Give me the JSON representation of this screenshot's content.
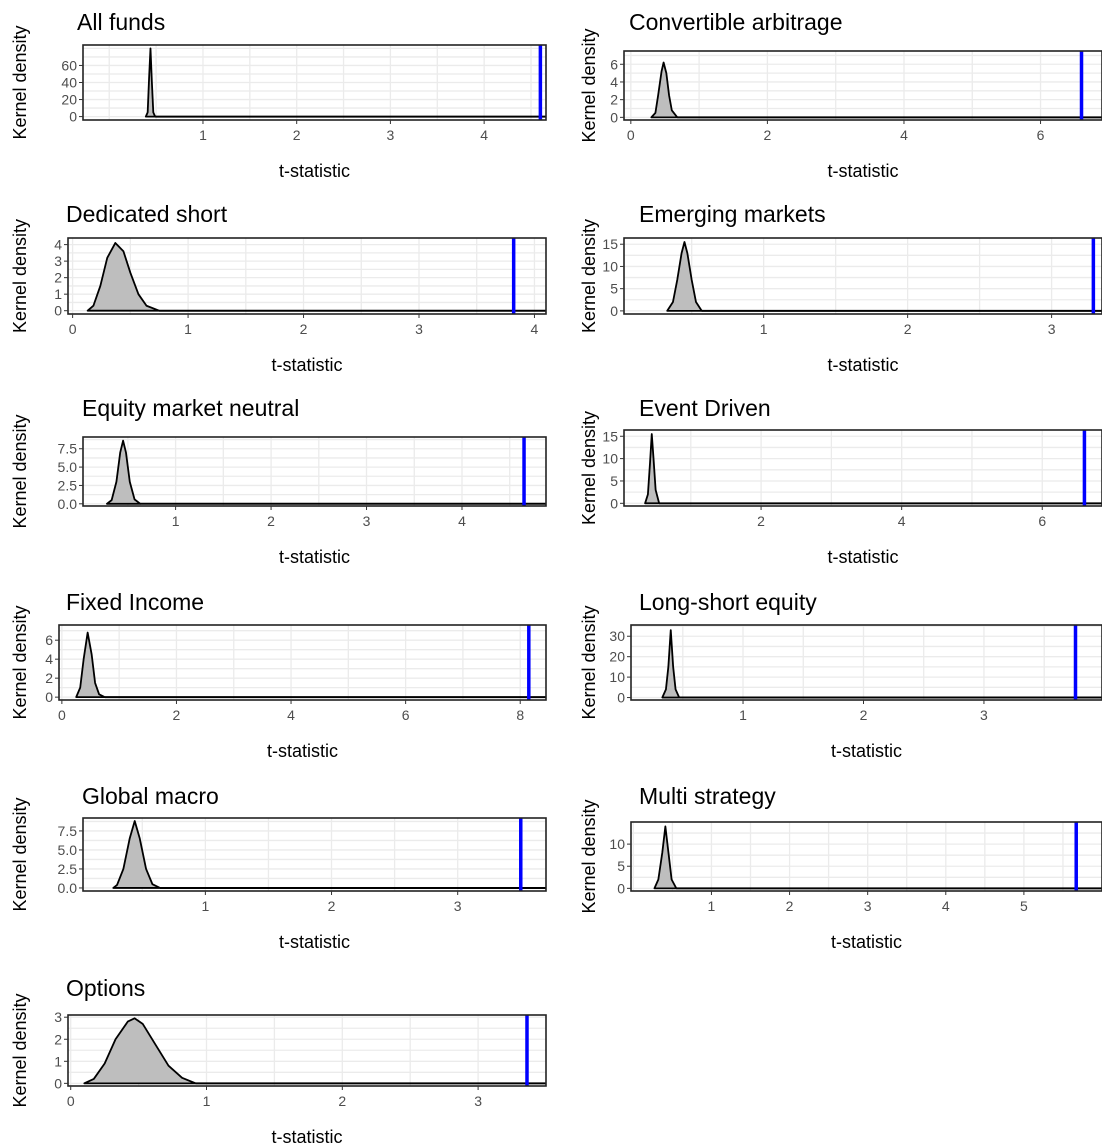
{
  "chart_data": [
    {
      "type": "area",
      "title": "All funds",
      "xlabel": "t-statistic",
      "ylabel": "Kernel density",
      "xlim": [
        -0.28,
        4.66
      ],
      "ylim": [
        -4,
        84
      ],
      "xticks": [
        "1",
        "2",
        "3",
        "4"
      ],
      "yticks": [
        "0",
        "20",
        "40",
        "60"
      ],
      "series": [
        {
          "name": "",
          "points": [
            [
              0.39,
              0
            ],
            [
              0.41,
              5
            ],
            [
              0.425,
              45
            ],
            [
              0.44,
              80
            ],
            [
              0.455,
              40
            ],
            [
              0.47,
              5
            ],
            [
              0.49,
              0
            ]
          ]
        }
      ],
      "vline": 4.6,
      "grid": true
    },
    {
      "type": "area",
      "title": "Convertible arbitrage",
      "xlabel": "t-statistic",
      "ylabel": "Kernel density",
      "xlim": [
        -0.1,
        6.9
      ],
      "ylim": [
        -0.3,
        7.5
      ],
      "xticks": [
        "0",
        "2",
        "4",
        "6"
      ],
      "yticks": [
        "0",
        "2",
        "4",
        "6"
      ],
      "series": [
        {
          "name": "",
          "points": [
            [
              0.3,
              0
            ],
            [
              0.36,
              0.5
            ],
            [
              0.4,
              2.5
            ],
            [
              0.45,
              5.2
            ],
            [
              0.48,
              6.2
            ],
            [
              0.52,
              5
            ],
            [
              0.56,
              2.5
            ],
            [
              0.6,
              0.8
            ],
            [
              0.68,
              0
            ]
          ]
        }
      ],
      "vline": 6.6,
      "grid": true
    },
    {
      "type": "area",
      "title": "Dedicated short",
      "xlabel": "t-statistic",
      "ylabel": "Kernel density",
      "xlim": [
        -0.04,
        4.1
      ],
      "ylim": [
        -0.2,
        4.4
      ],
      "xticks": [
        "0",
        "1",
        "2",
        "3",
        "4"
      ],
      "yticks": [
        "0",
        "1",
        "2",
        "3",
        "4"
      ],
      "series": [
        {
          "name": "",
          "points": [
            [
              0.13,
              0
            ],
            [
              0.18,
              0.3
            ],
            [
              0.24,
              1.5
            ],
            [
              0.3,
              3.2
            ],
            [
              0.37,
              4.1
            ],
            [
              0.44,
              3.6
            ],
            [
              0.5,
              2.3
            ],
            [
              0.57,
              1
            ],
            [
              0.64,
              0.3
            ],
            [
              0.75,
              0
            ]
          ]
        }
      ],
      "vline": 3.82,
      "grid": true
    },
    {
      "type": "area",
      "title": "Emerging markets",
      "xlabel": "t-statistic",
      "ylabel": "Kernel density",
      "xlim": [
        0.03,
        3.35
      ],
      "ylim": [
        -0.7,
        16.4
      ],
      "xticks": [
        "1",
        "2",
        "3"
      ],
      "yticks": [
        "0",
        "5",
        "10",
        "15"
      ],
      "series": [
        {
          "name": "",
          "points": [
            [
              0.33,
              0
            ],
            [
              0.37,
              2
            ],
            [
              0.4,
              7
            ],
            [
              0.43,
              13
            ],
            [
              0.45,
              15.5
            ],
            [
              0.47,
              13
            ],
            [
              0.5,
              7
            ],
            [
              0.53,
              2
            ],
            [
              0.57,
              0
            ]
          ]
        }
      ],
      "vline": 3.29,
      "grid": true
    },
    {
      "type": "area",
      "title": "Equity market neutral",
      "xlabel": "t-statistic",
      "ylabel": "Kernel density",
      "xlim": [
        0.03,
        4.88
      ],
      "ylim": [
        -0.3,
        9.1
      ],
      "xticks": [
        "1",
        "2",
        "3",
        "4"
      ],
      "yticks": [
        "0.0",
        "2.5",
        "5.0",
        "7.5"
      ],
      "series": [
        {
          "name": "",
          "points": [
            [
              0.28,
              0
            ],
            [
              0.33,
              0.5
            ],
            [
              0.38,
              3
            ],
            [
              0.42,
              7
            ],
            [
              0.45,
              8.6
            ],
            [
              0.48,
              7
            ],
            [
              0.52,
              3
            ],
            [
              0.57,
              0.6
            ],
            [
              0.63,
              0
            ]
          ]
        }
      ],
      "vline": 4.65,
      "grid": true
    },
    {
      "type": "area",
      "title": "Event Driven",
      "xlabel": "t-statistic",
      "ylabel": "Kernel density",
      "xlim": [
        0.05,
        6.85
      ],
      "ylim": [
        -0.6,
        16.4
      ],
      "xticks": [
        "2",
        "4",
        "6"
      ],
      "yticks": [
        "0",
        "5",
        "10",
        "15"
      ],
      "series": [
        {
          "name": "",
          "points": [
            [
              0.35,
              0
            ],
            [
              0.39,
              2
            ],
            [
              0.42,
              9
            ],
            [
              0.445,
              15.5
            ],
            [
              0.47,
              10
            ],
            [
              0.5,
              3
            ],
            [
              0.55,
              0
            ]
          ]
        }
      ],
      "vline": 6.6,
      "grid": true
    },
    {
      "type": "area",
      "title": "Fixed Income",
      "xlabel": "t-statistic",
      "ylabel": "Kernel density",
      "xlim": [
        -0.05,
        8.45
      ],
      "ylim": [
        -0.3,
        7.6
      ],
      "xticks": [
        "0",
        "2",
        "4",
        "6",
        "8"
      ],
      "yticks": [
        "0",
        "2",
        "4",
        "6"
      ],
      "series": [
        {
          "name": "",
          "points": [
            [
              0.25,
              0
            ],
            [
              0.32,
              1
            ],
            [
              0.38,
              4
            ],
            [
              0.45,
              6.8
            ],
            [
              0.52,
              4.5
            ],
            [
              0.58,
              1.5
            ],
            [
              0.65,
              0.3
            ],
            [
              0.75,
              0
            ]
          ]
        }
      ],
      "vline": 8.15,
      "grid": true
    },
    {
      "type": "area",
      "title": "Long-short equity",
      "xlabel": "t-statistic",
      "ylabel": "Kernel density",
      "xlim": [
        0.07,
        3.98
      ],
      "ylim": [
        -1.2,
        35.5
      ],
      "xticks": [
        "1",
        "2",
        "3"
      ],
      "yticks": [
        "0",
        "10",
        "20",
        "30"
      ],
      "series": [
        {
          "name": "",
          "points": [
            [
              0.33,
              0
            ],
            [
              0.36,
              4
            ],
            [
              0.38,
              15
            ],
            [
              0.4,
              33
            ],
            [
              0.42,
              15
            ],
            [
              0.44,
              4
            ],
            [
              0.47,
              0
            ]
          ]
        }
      ],
      "vline": 3.76,
      "grid": true
    },
    {
      "type": "area",
      "title": "Global macro",
      "xlabel": "t-statistic",
      "ylabel": "Kernel density",
      "xlim": [
        0.03,
        3.7
      ],
      "ylim": [
        -0.4,
        9.2
      ],
      "xticks": [
        "1",
        "2",
        "3"
      ],
      "yticks": [
        "0.0",
        "2.5",
        "5.0",
        "7.5"
      ],
      "series": [
        {
          "name": "",
          "points": [
            [
              0.27,
              0
            ],
            [
              0.3,
              0.4
            ],
            [
              0.35,
              2.5
            ],
            [
              0.4,
              6.5
            ],
            [
              0.44,
              8.8
            ],
            [
              0.48,
              6.5
            ],
            [
              0.53,
              2.5
            ],
            [
              0.58,
              0.5
            ],
            [
              0.64,
              0
            ]
          ]
        }
      ],
      "vline": 3.5,
      "grid": true
    },
    {
      "type": "area",
      "title": "Multi strategy",
      "xlabel": "t-statistic",
      "ylabel": "Kernel density",
      "xlim": [
        -0.03,
        6.0
      ],
      "ylim": [
        -0.6,
        15.0
      ],
      "xticks": [
        "1",
        "2",
        "3",
        "4",
        "5"
      ],
      "yticks": [
        "0",
        "5",
        "10"
      ],
      "series": [
        {
          "name": "",
          "points": [
            [
              0.27,
              0
            ],
            [
              0.32,
              2
            ],
            [
              0.37,
              8
            ],
            [
              0.41,
              14
            ],
            [
              0.45,
              8
            ],
            [
              0.49,
              2
            ],
            [
              0.55,
              0
            ]
          ]
        }
      ],
      "vline": 5.67,
      "grid": true
    },
    {
      "type": "area",
      "title": "Options",
      "xlabel": "t-statistic",
      "ylabel": "Kernel density",
      "xlim": [
        -0.02,
        3.5
      ],
      "ylim": [
        -0.12,
        3.1
      ],
      "xticks": [
        "0",
        "1",
        "2",
        "3"
      ],
      "yticks": [
        "0",
        "1",
        "2",
        "3"
      ],
      "series": [
        {
          "name": "",
          "points": [
            [
              0.1,
              0
            ],
            [
              0.17,
              0.2
            ],
            [
              0.25,
              0.9
            ],
            [
              0.33,
              2
            ],
            [
              0.42,
              2.8
            ],
            [
              0.47,
              2.95
            ],
            [
              0.53,
              2.7
            ],
            [
              0.62,
              1.8
            ],
            [
              0.72,
              0.8
            ],
            [
              0.82,
              0.25
            ],
            [
              0.92,
              0
            ]
          ]
        }
      ],
      "vline": 3.36,
      "grid": true
    }
  ],
  "colors": {
    "fill": "#bebebe",
    "line": "#000000",
    "vline": "#0000ff",
    "grid": "#ebebeb"
  }
}
